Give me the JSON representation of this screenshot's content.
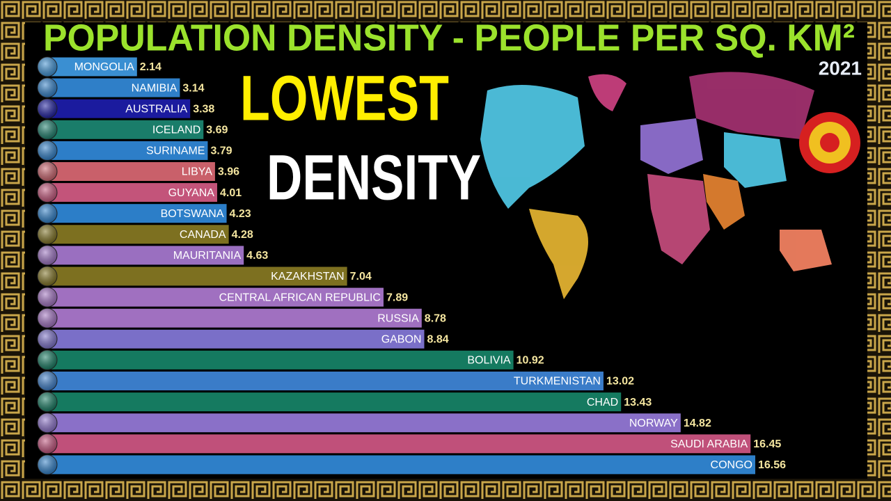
{
  "chart_data": {
    "type": "bar",
    "orientation": "horizontal",
    "title": "POPULATION DENSITY - PEOPLE PER SQ. KM²",
    "subtitle": "2021",
    "annotations": [
      "LOWEST",
      "DENSITY"
    ],
    "categories": [
      "MONGOLIA",
      "NAMIBIA",
      "AUSTRALIA",
      "ICELAND",
      "SURINAME",
      "LIBYA",
      "GUYANA",
      "BOTSWANA",
      "CANADA",
      "MAURITANIA",
      "KAZAKHSTAN",
      "CENTRAL AFRICAN REPUBLIC",
      "RUSSIA",
      "GABON",
      "BOLIVIA",
      "TURKMENISTAN",
      "CHAD",
      "NORWAY",
      "SAUDI ARABIA",
      "CONGO"
    ],
    "values": [
      2.14,
      3.14,
      3.38,
      3.69,
      3.79,
      3.96,
      4.01,
      4.23,
      4.28,
      4.63,
      7.04,
      7.89,
      8.78,
      8.84,
      10.92,
      13.02,
      13.43,
      14.82,
      16.45,
      16.56
    ],
    "colors": [
      "#3a8fd2",
      "#2f7fc8",
      "#1b1b9e",
      "#1a7d6a",
      "#2d7ec8",
      "#c9606a",
      "#c3547a",
      "#2c7ec8",
      "#7d7020",
      "#9a6fc0",
      "#7d7020",
      "#a070c0",
      "#a070c0",
      "#7a6fc8",
      "#157a60",
      "#3a7cc8",
      "#157a60",
      "#8a70c8",
      "#c0507a",
      "#2e7fc8"
    ]
  }
}
